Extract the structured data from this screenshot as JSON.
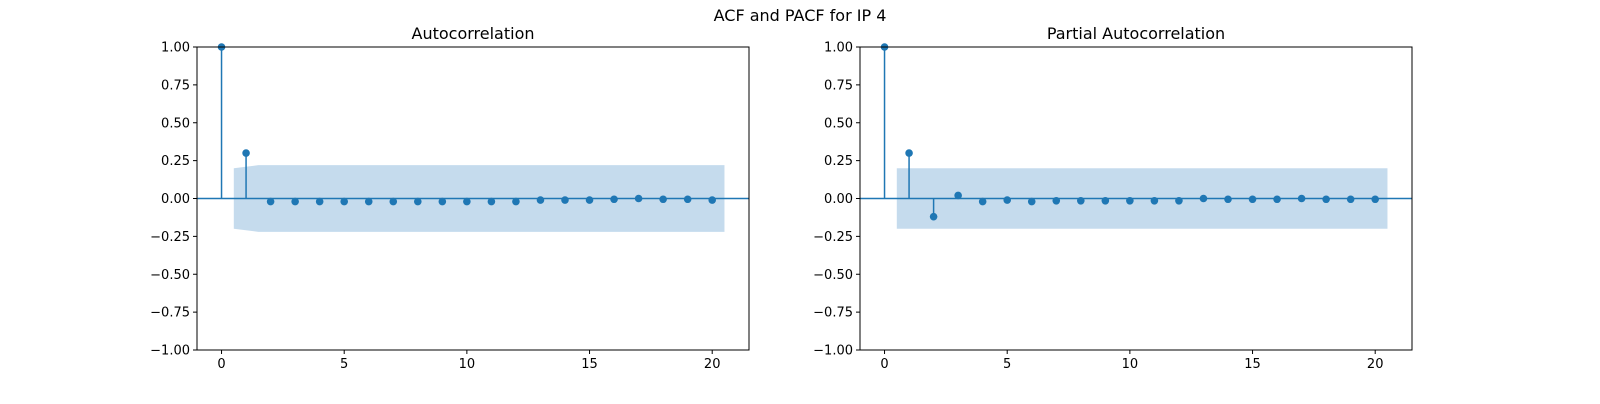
{
  "figure": {
    "suptitle": "ACF and PACF for IP 4"
  },
  "colors": {
    "stem": "#1f77b4",
    "band": "#a6c8e3",
    "axis": "#000000",
    "background": "#ffffff"
  },
  "chart_data": [
    {
      "type": "stem",
      "title": "Autocorrelation",
      "xlabel": "",
      "ylabel": "",
      "xlim": [
        -1,
        21.5
      ],
      "ylim": [
        -1.0,
        1.0
      ],
      "xticks": [
        0,
        5,
        10,
        15,
        20
      ],
      "yticks": [
        -1.0,
        -0.75,
        -0.5,
        -0.25,
        0.0,
        0.25,
        0.5,
        0.75,
        1.0
      ],
      "ytick_labels": [
        "−1.00",
        "−0.75",
        "−0.50",
        "−0.25",
        "0.00",
        "0.25",
        "0.50",
        "0.75",
        "1.00"
      ],
      "lags": [
        0,
        1,
        2,
        3,
        4,
        5,
        6,
        7,
        8,
        9,
        10,
        11,
        12,
        13,
        14,
        15,
        16,
        17,
        18,
        19,
        20
      ],
      "values": [
        1.0,
        0.3,
        -0.02,
        -0.02,
        -0.02,
        -0.02,
        -0.02,
        -0.02,
        -0.02,
        -0.02,
        -0.02,
        -0.02,
        -0.02,
        -0.01,
        -0.01,
        -0.01,
        -0.005,
        0.0,
        -0.005,
        -0.005,
        -0.01
      ],
      "confidence_band": {
        "x": [
          0.5,
          1.5,
          2.5,
          20.5
        ],
        "upper": [
          0.2,
          0.22,
          0.22,
          0.22
        ],
        "lower": [
          -0.2,
          -0.22,
          -0.22,
          -0.22
        ]
      },
      "grid": false,
      "zero_line": true
    },
    {
      "type": "stem",
      "title": "Partial Autocorrelation",
      "xlabel": "",
      "ylabel": "",
      "xlim": [
        -1,
        21.5
      ],
      "ylim": [
        -1.0,
        1.0
      ],
      "xticks": [
        0,
        5,
        10,
        15,
        20
      ],
      "yticks": [
        -1.0,
        -0.75,
        -0.5,
        -0.25,
        0.0,
        0.25,
        0.5,
        0.75,
        1.0
      ],
      "ytick_labels": [
        "−1.00",
        "−0.75",
        "−0.50",
        "−0.25",
        "0.00",
        "0.25",
        "0.50",
        "0.75",
        "1.00"
      ],
      "lags": [
        0,
        1,
        2,
        3,
        4,
        5,
        6,
        7,
        8,
        9,
        10,
        11,
        12,
        13,
        14,
        15,
        16,
        17,
        18,
        19,
        20
      ],
      "values": [
        1.0,
        0.3,
        -0.12,
        0.02,
        -0.02,
        -0.01,
        -0.02,
        -0.015,
        -0.015,
        -0.015,
        -0.015,
        -0.015,
        -0.015,
        0.0,
        -0.005,
        -0.005,
        -0.005,
        0.0,
        -0.005,
        -0.005,
        -0.005
      ],
      "confidence_band": {
        "x": [
          0.5,
          20.5
        ],
        "upper": [
          0.2,
          0.2
        ],
        "lower": [
          -0.2,
          -0.2
        ]
      },
      "grid": false,
      "zero_line": true
    }
  ]
}
